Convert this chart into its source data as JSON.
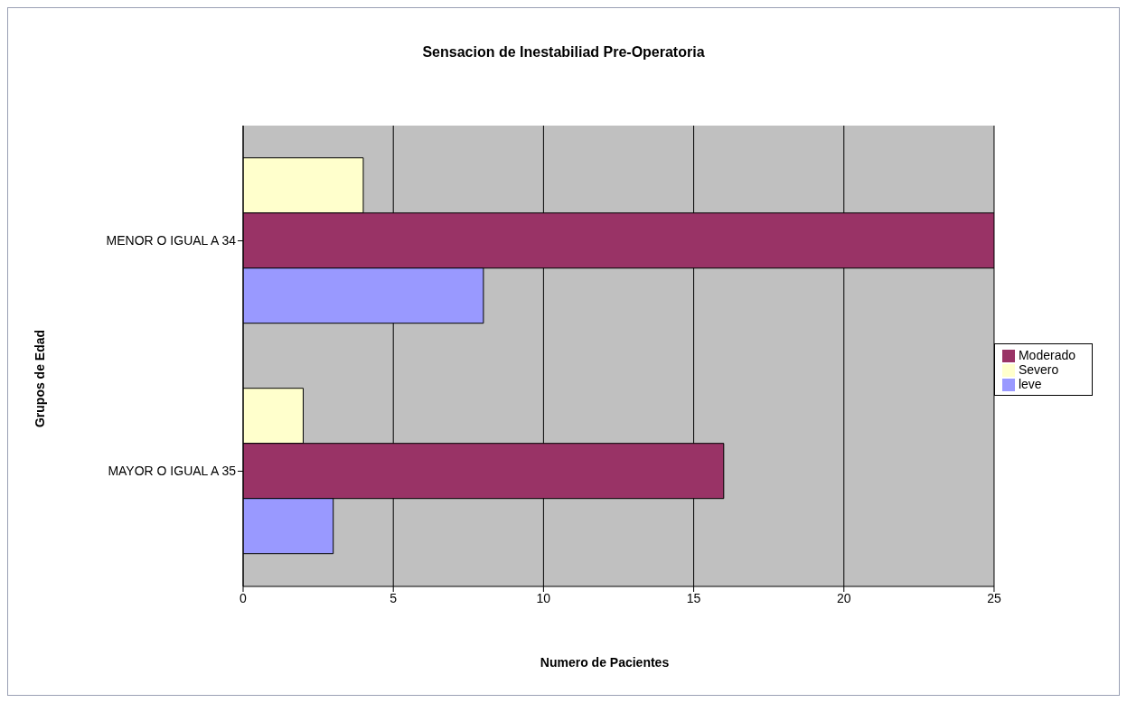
{
  "chart_data": {
    "type": "bar",
    "orientation": "horizontal",
    "title": "Sensacion de Inestabiliad Pre-Operatoria",
    "xlabel": "Numero de Pacientes",
    "ylabel": "Grupos de Edad",
    "categories": [
      "MENOR O IGUAL A 34",
      "MAYOR O IGUAL A 35"
    ],
    "series": [
      {
        "name": "Severo",
        "color": "#ffffcc",
        "values": [
          4,
          2
        ]
      },
      {
        "name": "Moderado",
        "color": "#993366",
        "values": [
          25,
          16
        ]
      },
      {
        "name": "leve",
        "color": "#9999ff",
        "values": [
          8,
          3
        ]
      }
    ],
    "xlim": [
      0,
      25
    ],
    "xticks": [
      0,
      5,
      10,
      15,
      20,
      25
    ],
    "grid": "x",
    "legend": "right"
  }
}
